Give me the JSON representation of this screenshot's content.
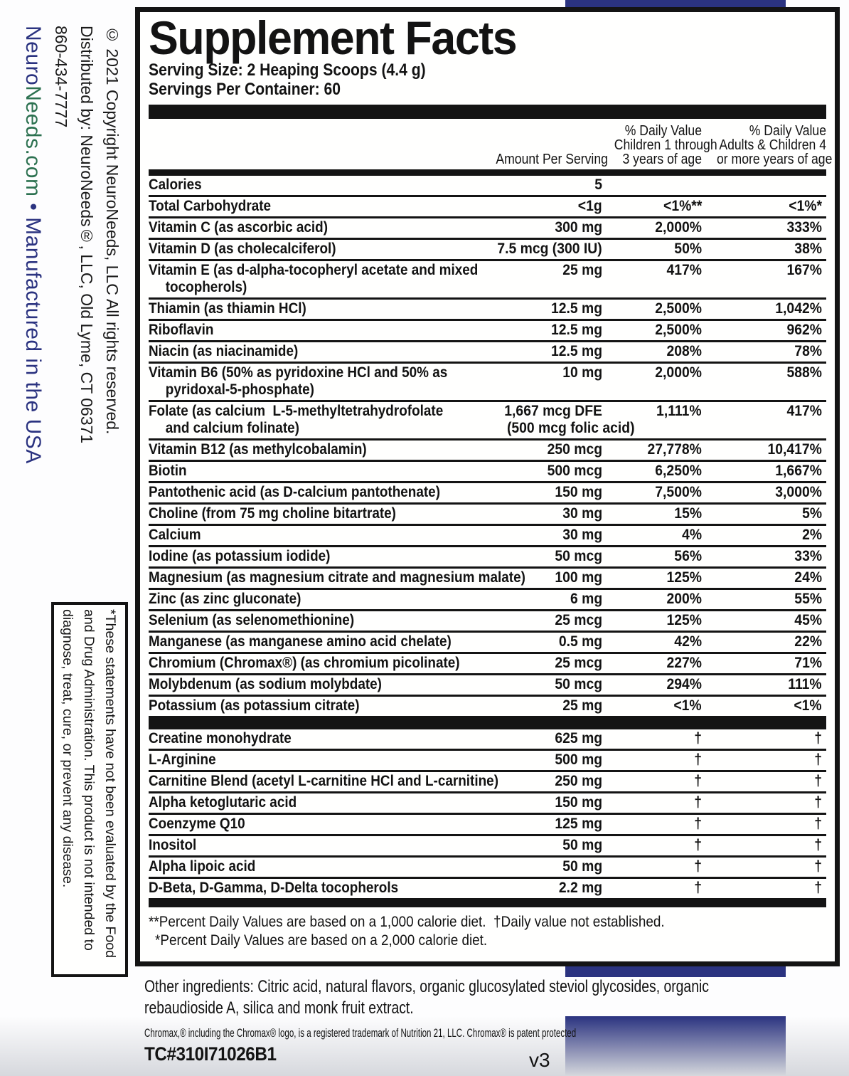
{
  "colors": {
    "navy": "#2b3380",
    "green": "#2c7150",
    "ink": "#141414"
  },
  "panel": {
    "title": "Supplement Facts",
    "serving_size": "Serving Size: 2 Heaping Scoops (4.4 g)",
    "servings_per_container": "Servings Per Container: 60",
    "columns": {
      "amount": "Amount Per Serving",
      "dv_children": [
        "% Daily Value",
        "Children 1 through",
        "3 years of age"
      ],
      "dv_adults": [
        "% Daily Value",
        "Adults & Children 4",
        "or more years of age"
      ]
    },
    "main_rows": [
      {
        "name": "Calories",
        "amount": "5",
        "dv_children": "",
        "dv_adults": ""
      },
      {
        "name": "Total Carbohydrate",
        "amount": "<1g",
        "dv_children": "<1%**",
        "dv_adults": "<1%*"
      },
      {
        "name": "Vitamin C (as ascorbic acid)",
        "amount": "300 mg",
        "dv_children": "2,000%",
        "dv_adults": "333%"
      },
      {
        "name": "Vitamin D (as cholecalciferol)",
        "amount": "7.5 mcg (300 IU)",
        "dv_children": "50%",
        "dv_adults": "38%"
      },
      {
        "name": "Vitamin E (as d-alpha-tocopheryl acetate and mixed",
        "name2": "tocopherols)",
        "amount": "25 mg",
        "dv_children": "417%",
        "dv_adults": "167%"
      },
      {
        "name": "Thiamin (as thiamin HCl)",
        "amount": "12.5 mg",
        "dv_children": "2,500%",
        "dv_adults": "1,042%"
      },
      {
        "name": "Riboflavin",
        "amount": "12.5 mg",
        "dv_children": "2,500%",
        "dv_adults": "962%"
      },
      {
        "name": "Niacin (as niacinamide)",
        "amount": "12.5 mg",
        "dv_children": "208%",
        "dv_adults": "78%"
      },
      {
        "name": "Vitamin B6 (50% as pyridoxine HCl and 50% as",
        "name2": "pyridoxal-5-phosphate)",
        "amount": "10 mg",
        "dv_children": "2,000%",
        "dv_adults": "588%"
      },
      {
        "name": "Folate (as calcium  L-5-methyltetrahydrofolate",
        "name2": "and calcium folinate)",
        "amount": "1,667 mcg DFE",
        "amount2": "(500 mcg folic acid)",
        "dv_children": "1,111%",
        "dv_adults": "417%"
      },
      {
        "name": "Vitamin B12 (as methylcobalamin)",
        "amount": "250 mcg",
        "dv_children": "27,778%",
        "dv_adults": "10,417%"
      },
      {
        "name": "Biotin",
        "amount": "500 mcg",
        "dv_children": "6,250%",
        "dv_adults": "1,667%"
      },
      {
        "name": "Pantothenic acid (as D-calcium pantothenate)",
        "amount": "150 mg",
        "dv_children": "7,500%",
        "dv_adults": "3,000%"
      },
      {
        "name": "Choline (from 75 mg choline bitartrate)",
        "amount": "30 mg",
        "dv_children": "15%",
        "dv_adults": "5%"
      },
      {
        "name": "Calcium",
        "amount": "30 mg",
        "dv_children": "4%",
        "dv_adults": "2%"
      },
      {
        "name": "Iodine (as potassium iodide)",
        "amount": "50 mcg",
        "dv_children": "56%",
        "dv_adults": "33%"
      },
      {
        "name": "Magnesium (as magnesium citrate and magnesium malate)",
        "amount": "100 mg",
        "dv_children": "125%",
        "dv_adults": "24%"
      },
      {
        "name": "Zinc (as zinc gluconate)",
        "amount": "6 mg",
        "dv_children": "200%",
        "dv_adults": "55%"
      },
      {
        "name": "Selenium (as selenomethionine)",
        "amount": "25 mcg",
        "dv_children": "125%",
        "dv_adults": "45%"
      },
      {
        "name": "Manganese (as manganese amino acid chelate)",
        "amount": "0.5 mg",
        "dv_children": "42%",
        "dv_adults": "22%"
      },
      {
        "name": "Chromium (Chromax®) (as chromium picolinate)",
        "amount": "25 mcg",
        "dv_children": "227%",
        "dv_adults": "71%"
      },
      {
        "name": "Molybdenum (as sodium molybdate)",
        "amount": "50 mcg",
        "dv_children": "294%",
        "dv_adults": "111%"
      },
      {
        "name": "Potassium (as potassium citrate)",
        "amount": "25 mg",
        "dv_children": "<1%",
        "dv_adults": "<1%"
      }
    ],
    "extra_rows": [
      {
        "name": "Creatine monohydrate",
        "amount": "625 mg",
        "dv_children": "†",
        "dv_adults": "†"
      },
      {
        "name": "L-Arginine",
        "amount": "500 mg",
        "dv_children": "†",
        "dv_adults": "†"
      },
      {
        "name": "Carnitine Blend (acetyl L-carnitine HCl and L-carnitine)",
        "amount": "250 mg",
        "dv_children": "†",
        "dv_adults": "†"
      },
      {
        "name": "Alpha ketoglutaric acid",
        "amount": "150 mg",
        "dv_children": "†",
        "dv_adults": "†"
      },
      {
        "name": "Coenzyme Q10",
        "amount": "125 mg",
        "dv_children": "†",
        "dv_adults": "†"
      },
      {
        "name": "Inositol",
        "amount": "50 mg",
        "dv_children": "†",
        "dv_adults": "†"
      },
      {
        "name": "Alpha lipoic acid",
        "amount": "50 mg",
        "dv_children": "†",
        "dv_adults": "†"
      },
      {
        "name": "D-Beta, D-Gamma, D-Delta tocopherols",
        "amount": "2.2 mg",
        "dv_children": "†",
        "dv_adults": "†"
      }
    ],
    "footnotes": [
      "**Percent Daily Values are based on a 1,000 calorie diet.  †Daily value not established.",
      "*Percent Daily Values are based on a 2,000 calorie diet."
    ]
  },
  "sidebar": {
    "copyright": "© 2021 Copyright NeuroNeeds, LLC All rights reserved.",
    "distributed": "Distributed by: NeuroNeeds®, LLC, Old Lyme, CT 06371",
    "phone": "860-434-7777",
    "website_neuro": "Neuro",
    "website_needs": "Needs.com",
    "website_rest": " • Manufactured in the USA"
  },
  "disclaimer_lines": [
    "*These statements have not been evaluated by the Food",
    "and Drug Administration. This product is not intended to",
    "diagnose, treat, cure, or prevent any disease."
  ],
  "bottom": {
    "other_ingredients_lines": [
      "Other ingredients: Citric acid, natural flavors, organic glucosylated steviol glycosides, organic",
      "rebaudioside A, silica and monk fruit extract."
    ],
    "chromax_note": "Chromax,® including the Chromax® logo, is a registered trademark of Nutrition 21, LLC. Chromax® is patent protected",
    "tc_code": "TC#310I71026B1",
    "version": "v3"
  }
}
